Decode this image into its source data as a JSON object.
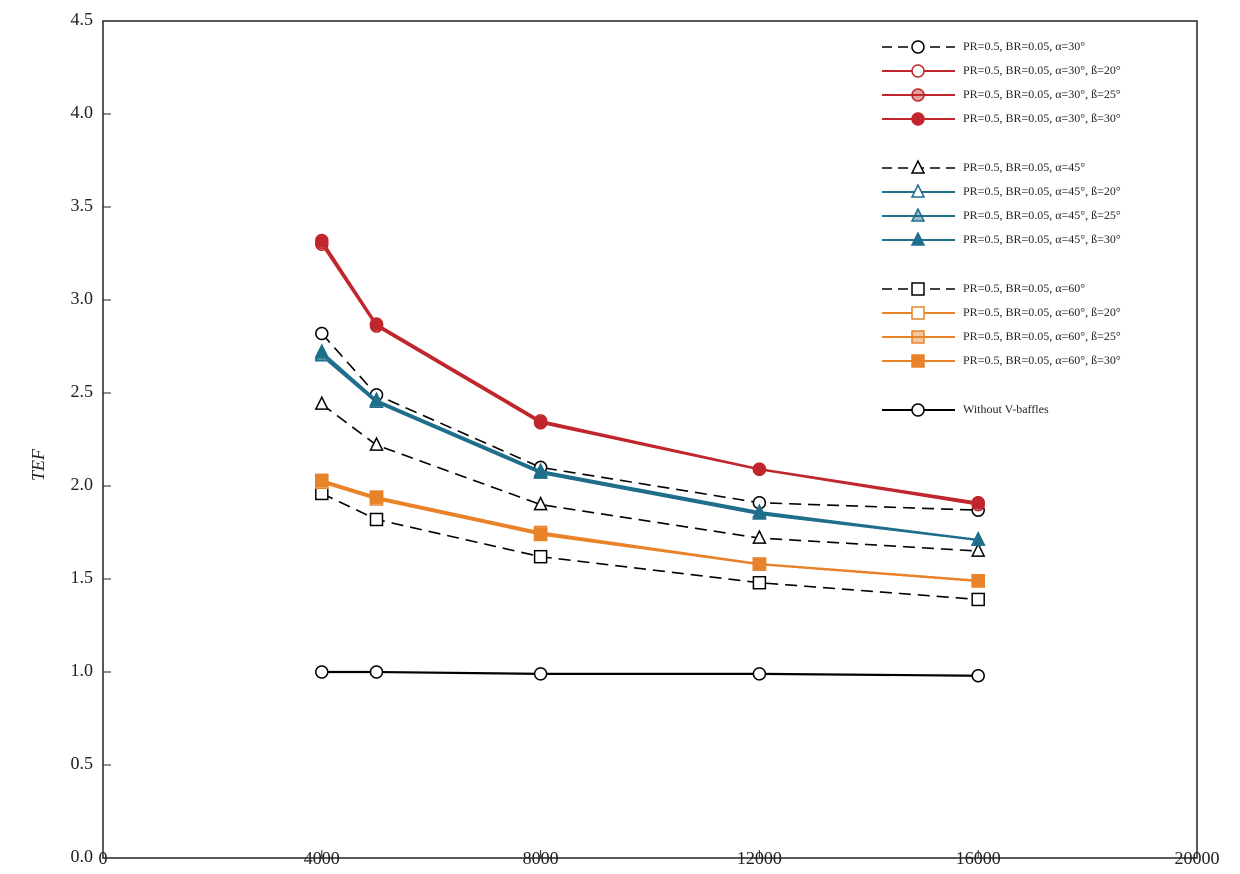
{
  "chart_data": {
    "type": "line",
    "y_label": "TEF",
    "x": [
      4000,
      5000,
      8000,
      12000,
      16000
    ],
    "xlim": [
      0,
      20000
    ],
    "xticks": [
      0,
      4000,
      8000,
      12000,
      16000,
      20000
    ],
    "ylim": [
      0,
      4.5
    ],
    "yticks": [
      {
        "value": 0,
        "label": "0.0"
      },
      0.5,
      {
        "value": 1,
        "label": "1.0"
      },
      1.5,
      {
        "value": 2,
        "label": "2.0"
      },
      2.5,
      {
        "value": 3,
        "label": "3.0"
      },
      3.5,
      {
        "value": 4,
        "label": "4.0"
      },
      4.5
    ],
    "legend_position": "upper right",
    "series": [
      {
        "name": "PR=0.5, BR=0.05, α=30°",
        "color": "#000000",
        "dash": "dashed",
        "marker": "circle",
        "fill": "open",
        "values": [
          2.82,
          2.49,
          2.1,
          1.91,
          1.87
        ]
      },
      {
        "name": "PR=0.5, BR=0.05, α=30°, ß=20°",
        "color": "#c0272d",
        "dash": "solid",
        "marker": "circle",
        "fill": "open",
        "values": [
          3.3,
          2.86,
          2.34,
          2.09,
          1.9
        ]
      },
      {
        "name": "PR=0.5, BR=0.05, α=30°, ß=25°",
        "color": "#c0272d",
        "dash": "solid",
        "marker": "circle",
        "fill": "half",
        "values": [
          3.31,
          2.87,
          2.35,
          2.09,
          1.91
        ]
      },
      {
        "name": "PR=0.5, BR=0.05, α=30°, ß=30°",
        "color": "#c0272d",
        "dash": "solid",
        "marker": "circle",
        "fill": "filled",
        "values": [
          3.32,
          2.87,
          2.34,
          2.09,
          1.91
        ]
      },
      {
        "name": "PR=0.5, BR=0.05, α=45°",
        "color": "#000000",
        "dash": "dashed",
        "marker": "triangle",
        "fill": "open",
        "values": [
          2.44,
          2.22,
          1.9,
          1.72,
          1.65
        ]
      },
      {
        "name": "PR=0.5, BR=0.05, α=45°, ß=20°",
        "color": "#1f6e8c",
        "dash": "solid",
        "marker": "triangle",
        "fill": "open",
        "values": [
          2.7,
          2.45,
          2.07,
          1.85,
          1.71
        ]
      },
      {
        "name": "PR=0.5, BR=0.05, α=45°, ß=25°",
        "color": "#1f6e8c",
        "dash": "solid",
        "marker": "triangle",
        "fill": "half",
        "values": [
          2.71,
          2.46,
          2.08,
          1.86,
          1.71
        ]
      },
      {
        "name": "PR=0.5, BR=0.05, α=45°, ß=30°",
        "color": "#1f6e8c",
        "dash": "solid",
        "marker": "triangle",
        "fill": "filled",
        "values": [
          2.72,
          2.46,
          2.07,
          1.85,
          1.71
        ]
      },
      {
        "name": "PR=0.5, BR=0.05, α=60°",
        "color": "#000000",
        "dash": "dashed",
        "marker": "square",
        "fill": "open",
        "values": [
          1.96,
          1.82,
          1.62,
          1.48,
          1.39
        ]
      },
      {
        "name": "PR=0.5, BR=0.05, α=60°, ß=20°",
        "color": "#e8832a",
        "dash": "solid",
        "marker": "square",
        "fill": "open",
        "values": [
          2.02,
          1.93,
          1.74,
          1.58,
          1.49
        ]
      },
      {
        "name": "PR=0.5, BR=0.05, α=60°, ß=25°",
        "color": "#e8832a",
        "dash": "solid",
        "marker": "square",
        "fill": "half",
        "values": [
          2.03,
          1.94,
          1.75,
          1.58,
          1.49
        ]
      },
      {
        "name": "PR=0.5, BR=0.05, α=60°, ß=30°",
        "color": "#e8832a",
        "dash": "solid",
        "marker": "square",
        "fill": "filled",
        "values": [
          2.03,
          1.94,
          1.74,
          1.58,
          1.49
        ]
      },
      {
        "name": "Without V-baffles",
        "color": "#000000",
        "dash": "solid",
        "marker": "circle",
        "fill": "open",
        "values": [
          1.0,
          1.0,
          0.99,
          0.99,
          0.98
        ]
      }
    ]
  }
}
